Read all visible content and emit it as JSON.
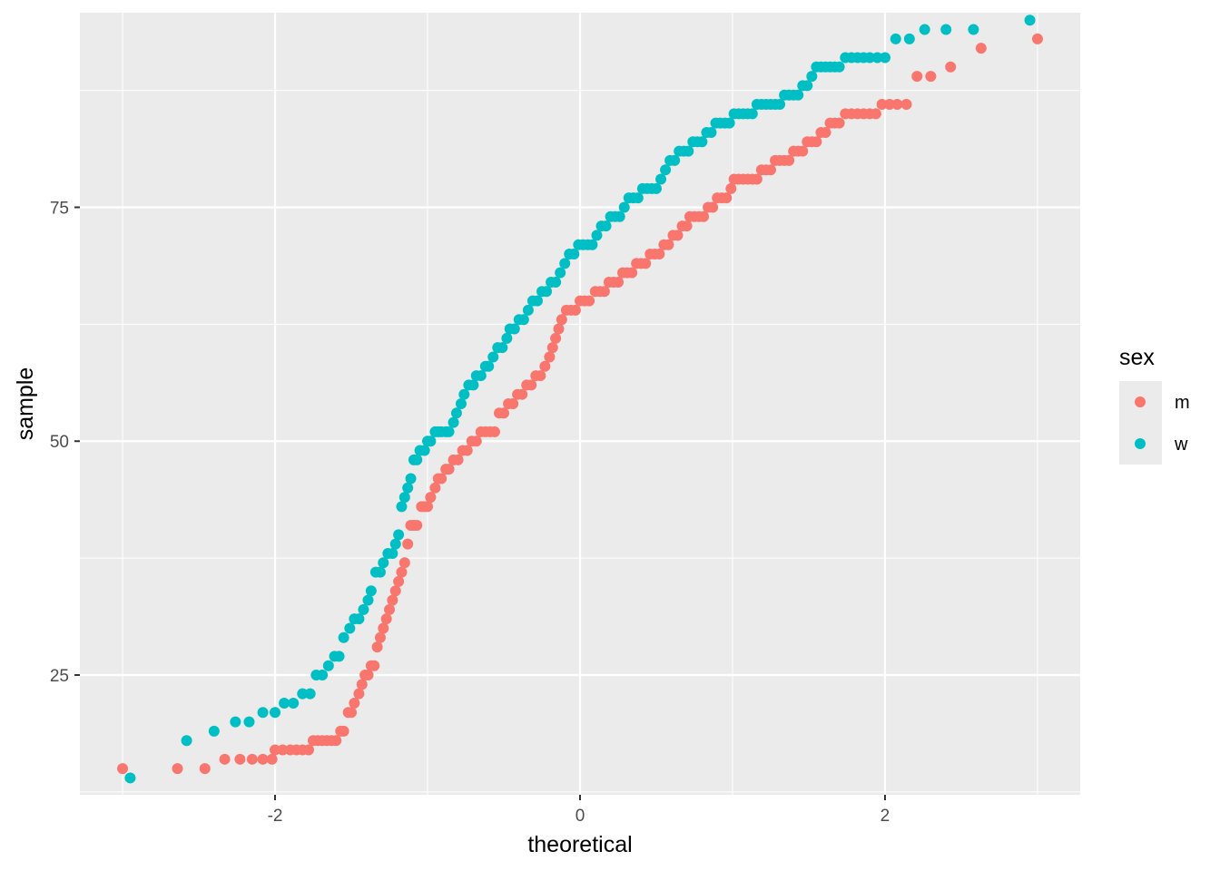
{
  "chart_data": {
    "type": "scatter",
    "subtype": "qq-plot",
    "title": "",
    "xlabel": "theoretical",
    "ylabel": "sample",
    "xlim": [
      -3.28,
      3.28
    ],
    "ylim": [
      12.2,
      95.8
    ],
    "x_ticks": [
      -2,
      0,
      2
    ],
    "x_tick_labels": [
      "-2",
      "0",
      "2"
    ],
    "y_ticks": [
      25,
      50,
      75
    ],
    "y_tick_labels": [
      "25",
      "50",
      "75"
    ],
    "grid": true,
    "panel_background": "#ebebeb",
    "legend": {
      "title": "sex",
      "position": "right",
      "entries": [
        {
          "label": "m",
          "color": "#F8766D"
        },
        {
          "label": "w",
          "color": "#00BFC4"
        }
      ]
    },
    "series": [
      {
        "name": "m",
        "color": "#F8766D",
        "points": [
          [
            -3.0,
            15
          ],
          [
            -2.64,
            15
          ],
          [
            -2.46,
            15
          ],
          [
            -2.33,
            16
          ],
          [
            -2.23,
            16
          ],
          [
            -2.15,
            16
          ],
          [
            -2.08,
            16
          ],
          [
            -2.02,
            16
          ],
          [
            -2.0,
            17
          ],
          [
            -1.95,
            17
          ],
          [
            -1.9,
            17
          ],
          [
            -1.86,
            17
          ],
          [
            -1.82,
            17
          ],
          [
            -1.78,
            17
          ],
          [
            -1.75,
            18
          ],
          [
            -1.72,
            18
          ],
          [
            -1.69,
            18
          ],
          [
            -1.66,
            18
          ],
          [
            -1.63,
            18
          ],
          [
            -1.6,
            18
          ],
          [
            -1.57,
            19
          ],
          [
            -1.55,
            19
          ],
          [
            -1.52,
            21
          ],
          [
            -1.5,
            21
          ],
          [
            -1.48,
            22
          ],
          [
            -1.45,
            23
          ],
          [
            -1.43,
            24
          ],
          [
            -1.41,
            25
          ],
          [
            -1.39,
            25
          ],
          [
            -1.37,
            26
          ],
          [
            -1.35,
            26
          ],
          [
            -1.33,
            28
          ],
          [
            -1.31,
            29
          ],
          [
            -1.29,
            30
          ],
          [
            -1.27,
            31
          ],
          [
            -1.25,
            32
          ],
          [
            -1.23,
            33
          ],
          [
            -1.21,
            34
          ],
          [
            -1.19,
            35
          ],
          [
            -1.17,
            36
          ],
          [
            -1.15,
            37
          ],
          [
            -1.13,
            39
          ],
          [
            -1.11,
            41
          ],
          [
            -1.09,
            41
          ],
          [
            -1.07,
            41
          ],
          [
            -1.04,
            43
          ],
          [
            -1.02,
            43
          ],
          [
            -1.0,
            43
          ],
          [
            -0.98,
            44
          ],
          [
            -0.95,
            45
          ],
          [
            -0.93,
            46
          ],
          [
            -0.91,
            46
          ],
          [
            -0.88,
            47
          ],
          [
            -0.86,
            47
          ],
          [
            -0.83,
            48
          ],
          [
            -0.8,
            48
          ],
          [
            -0.77,
            49
          ],
          [
            -0.74,
            49
          ],
          [
            -0.71,
            50
          ],
          [
            -0.68,
            50
          ],
          [
            -0.65,
            51
          ],
          [
            -0.62,
            51
          ],
          [
            -0.59,
            51
          ],
          [
            -0.56,
            51
          ],
          [
            -0.53,
            53
          ],
          [
            -0.5,
            53
          ],
          [
            -0.47,
            54
          ],
          [
            -0.44,
            54
          ],
          [
            -0.41,
            55
          ],
          [
            -0.38,
            55
          ],
          [
            -0.35,
            56
          ],
          [
            -0.32,
            56
          ],
          [
            -0.29,
            57
          ],
          [
            -0.26,
            57
          ],
          [
            -0.23,
            58
          ],
          [
            -0.2,
            59
          ],
          [
            -0.18,
            60
          ],
          [
            -0.16,
            61
          ],
          [
            -0.14,
            62
          ],
          [
            -0.12,
            63
          ],
          [
            -0.09,
            64
          ],
          [
            -0.06,
            64
          ],
          [
            -0.03,
            64
          ],
          [
            0.0,
            65
          ],
          [
            0.03,
            65
          ],
          [
            0.06,
            65
          ],
          [
            0.1,
            66
          ],
          [
            0.13,
            66
          ],
          [
            0.16,
            66
          ],
          [
            0.19,
            67
          ],
          [
            0.22,
            67
          ],
          [
            0.25,
            67
          ],
          [
            0.28,
            68
          ],
          [
            0.31,
            68
          ],
          [
            0.34,
            68
          ],
          [
            0.37,
            69
          ],
          [
            0.4,
            69
          ],
          [
            0.43,
            69
          ],
          [
            0.46,
            70
          ],
          [
            0.49,
            70
          ],
          [
            0.52,
            70
          ],
          [
            0.55,
            71
          ],
          [
            0.58,
            71
          ],
          [
            0.61,
            72
          ],
          [
            0.64,
            72
          ],
          [
            0.67,
            73
          ],
          [
            0.7,
            73
          ],
          [
            0.72,
            74
          ],
          [
            0.75,
            74
          ],
          [
            0.78,
            74
          ],
          [
            0.81,
            74
          ],
          [
            0.84,
            75
          ],
          [
            0.87,
            75
          ],
          [
            0.9,
            76
          ],
          [
            0.93,
            76
          ],
          [
            0.96,
            76
          ],
          [
            0.99,
            77
          ],
          [
            1.01,
            78
          ],
          [
            1.04,
            78
          ],
          [
            1.07,
            78
          ],
          [
            1.1,
            78
          ],
          [
            1.13,
            78
          ],
          [
            1.16,
            78
          ],
          [
            1.19,
            79
          ],
          [
            1.22,
            79
          ],
          [
            1.25,
            79
          ],
          [
            1.28,
            80
          ],
          [
            1.31,
            80
          ],
          [
            1.34,
            80
          ],
          [
            1.37,
            80
          ],
          [
            1.4,
            81
          ],
          [
            1.43,
            81
          ],
          [
            1.46,
            81
          ],
          [
            1.49,
            82
          ],
          [
            1.52,
            82
          ],
          [
            1.55,
            82
          ],
          [
            1.58,
            83
          ],
          [
            1.61,
            83
          ],
          [
            1.64,
            84
          ],
          [
            1.67,
            84
          ],
          [
            1.7,
            84
          ],
          [
            1.74,
            85
          ],
          [
            1.78,
            85
          ],
          [
            1.82,
            85
          ],
          [
            1.86,
            85
          ],
          [
            1.9,
            85
          ],
          [
            1.94,
            85
          ],
          [
            1.98,
            86
          ],
          [
            2.03,
            86
          ],
          [
            2.08,
            86
          ],
          [
            2.14,
            86
          ],
          [
            2.21,
            89
          ],
          [
            2.3,
            89
          ],
          [
            2.43,
            90
          ],
          [
            2.63,
            92
          ],
          [
            3.0,
            93
          ]
        ]
      },
      {
        "name": "w",
        "color": "#00BFC4",
        "points": [
          [
            -2.95,
            14
          ],
          [
            -2.58,
            18
          ],
          [
            -2.4,
            19
          ],
          [
            -2.26,
            20
          ],
          [
            -2.17,
            20
          ],
          [
            -2.08,
            21
          ],
          [
            -2.0,
            21
          ],
          [
            -1.94,
            22
          ],
          [
            -1.88,
            22
          ],
          [
            -1.82,
            23
          ],
          [
            -1.77,
            23
          ],
          [
            -1.73,
            25
          ],
          [
            -1.69,
            25
          ],
          [
            -1.65,
            26
          ],
          [
            -1.61,
            27
          ],
          [
            -1.58,
            27
          ],
          [
            -1.55,
            29
          ],
          [
            -1.51,
            30
          ],
          [
            -1.48,
            31
          ],
          [
            -1.45,
            31
          ],
          [
            -1.42,
            32
          ],
          [
            -1.39,
            33
          ],
          [
            -1.37,
            34
          ],
          [
            -1.34,
            36
          ],
          [
            -1.31,
            36
          ],
          [
            -1.29,
            37
          ],
          [
            -1.26,
            38
          ],
          [
            -1.23,
            38
          ],
          [
            -1.21,
            39
          ],
          [
            -1.19,
            40
          ],
          [
            -1.17,
            43
          ],
          [
            -1.15,
            44
          ],
          [
            -1.13,
            45
          ],
          [
            -1.11,
            46
          ],
          [
            -1.09,
            48
          ],
          [
            -1.07,
            48
          ],
          [
            -1.05,
            49
          ],
          [
            -1.02,
            49
          ],
          [
            -1.0,
            50
          ],
          [
            -0.98,
            50
          ],
          [
            -0.95,
            51
          ],
          [
            -0.93,
            51
          ],
          [
            -0.91,
            51
          ],
          [
            -0.88,
            51
          ],
          [
            -0.86,
            51
          ],
          [
            -0.83,
            52
          ],
          [
            -0.81,
            53
          ],
          [
            -0.78,
            54
          ],
          [
            -0.76,
            55
          ],
          [
            -0.73,
            56
          ],
          [
            -0.7,
            56
          ],
          [
            -0.68,
            57
          ],
          [
            -0.65,
            57
          ],
          [
            -0.62,
            58
          ],
          [
            -0.6,
            58
          ],
          [
            -0.57,
            59
          ],
          [
            -0.54,
            60
          ],
          [
            -0.51,
            60
          ],
          [
            -0.48,
            61
          ],
          [
            -0.46,
            62
          ],
          [
            -0.43,
            62
          ],
          [
            -0.4,
            63
          ],
          [
            -0.37,
            63
          ],
          [
            -0.34,
            64
          ],
          [
            -0.31,
            65
          ],
          [
            -0.28,
            65
          ],
          [
            -0.25,
            66
          ],
          [
            -0.22,
            66
          ],
          [
            -0.19,
            67
          ],
          [
            -0.16,
            67
          ],
          [
            -0.13,
            68
          ],
          [
            -0.1,
            69
          ],
          [
            -0.07,
            70
          ],
          [
            -0.04,
            70
          ],
          [
            -0.01,
            71
          ],
          [
            0.02,
            71
          ],
          [
            0.05,
            71
          ],
          [
            0.08,
            71
          ],
          [
            0.11,
            72
          ],
          [
            0.14,
            73
          ],
          [
            0.17,
            73
          ],
          [
            0.2,
            74
          ],
          [
            0.23,
            74
          ],
          [
            0.26,
            74
          ],
          [
            0.29,
            75
          ],
          [
            0.32,
            76
          ],
          [
            0.35,
            76
          ],
          [
            0.38,
            76
          ],
          [
            0.41,
            77
          ],
          [
            0.44,
            77
          ],
          [
            0.47,
            77
          ],
          [
            0.5,
            77
          ],
          [
            0.53,
            78
          ],
          [
            0.56,
            79
          ],
          [
            0.59,
            80
          ],
          [
            0.62,
            80
          ],
          [
            0.65,
            81
          ],
          [
            0.68,
            81
          ],
          [
            0.71,
            81
          ],
          [
            0.74,
            82
          ],
          [
            0.77,
            82
          ],
          [
            0.8,
            82
          ],
          [
            0.83,
            83
          ],
          [
            0.86,
            83
          ],
          [
            0.89,
            84
          ],
          [
            0.92,
            84
          ],
          [
            0.95,
            84
          ],
          [
            0.98,
            84
          ],
          [
            1.01,
            85
          ],
          [
            1.04,
            85
          ],
          [
            1.07,
            85
          ],
          [
            1.1,
            85
          ],
          [
            1.13,
            85
          ],
          [
            1.16,
            86
          ],
          [
            1.19,
            86
          ],
          [
            1.22,
            86
          ],
          [
            1.25,
            86
          ],
          [
            1.28,
            86
          ],
          [
            1.31,
            86
          ],
          [
            1.34,
            87
          ],
          [
            1.37,
            87
          ],
          [
            1.4,
            87
          ],
          [
            1.43,
            87
          ],
          [
            1.46,
            88
          ],
          [
            1.49,
            88
          ],
          [
            1.52,
            89
          ],
          [
            1.55,
            90
          ],
          [
            1.58,
            90
          ],
          [
            1.61,
            90
          ],
          [
            1.64,
            90
          ],
          [
            1.67,
            90
          ],
          [
            1.7,
            90
          ],
          [
            1.74,
            91
          ],
          [
            1.78,
            91
          ],
          [
            1.82,
            91
          ],
          [
            1.86,
            91
          ],
          [
            1.9,
            91
          ],
          [
            1.95,
            91
          ],
          [
            2.0,
            91
          ],
          [
            2.07,
            93
          ],
          [
            2.16,
            93
          ],
          [
            2.26,
            94
          ],
          [
            2.4,
            94
          ],
          [
            2.58,
            94
          ],
          [
            2.95,
            95
          ]
        ]
      }
    ]
  }
}
